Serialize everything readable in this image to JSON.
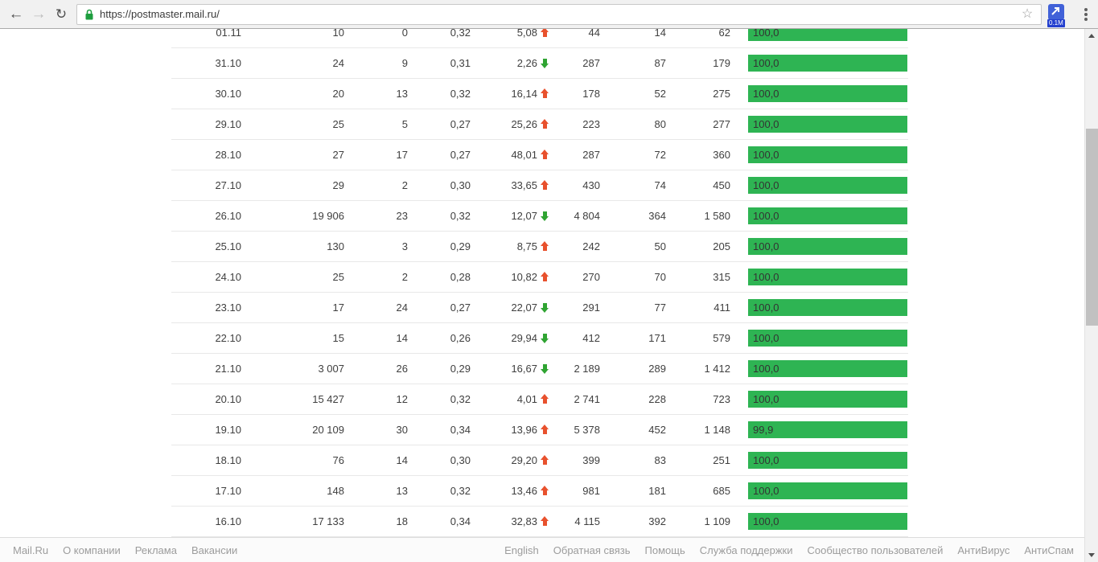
{
  "browser": {
    "url": "https://postmaster.mail.ru/",
    "extension_badge": "0.1M",
    "icons": {
      "back": "←",
      "forward": "→",
      "reload": "↻",
      "star": "☆"
    }
  },
  "table": {
    "rows": [
      {
        "date": "01.11",
        "v1": "10",
        "v2": "0",
        "v3": "0,32",
        "trend_value": "5,08",
        "trend": "up",
        "v4": "44",
        "v5": "14",
        "v6": "62",
        "bar_label": "100,0",
        "bar_percent": 100
      },
      {
        "date": "31.10",
        "v1": "24",
        "v2": "9",
        "v3": "0,31",
        "trend_value": "2,26",
        "trend": "down",
        "v4": "287",
        "v5": "87",
        "v6": "179",
        "bar_label": "100,0",
        "bar_percent": 100
      },
      {
        "date": "30.10",
        "v1": "20",
        "v2": "13",
        "v3": "0,32",
        "trend_value": "16,14",
        "trend": "up",
        "v4": "178",
        "v5": "52",
        "v6": "275",
        "bar_label": "100,0",
        "bar_percent": 100
      },
      {
        "date": "29.10",
        "v1": "25",
        "v2": "5",
        "v3": "0,27",
        "trend_value": "25,26",
        "trend": "up",
        "v4": "223",
        "v5": "80",
        "v6": "277",
        "bar_label": "100,0",
        "bar_percent": 100
      },
      {
        "date": "28.10",
        "v1": "27",
        "v2": "17",
        "v3": "0,27",
        "trend_value": "48,01",
        "trend": "up",
        "v4": "287",
        "v5": "72",
        "v6": "360",
        "bar_label": "100,0",
        "bar_percent": 100
      },
      {
        "date": "27.10",
        "v1": "29",
        "v2": "2",
        "v3": "0,30",
        "trend_value": "33,65",
        "trend": "up",
        "v4": "430",
        "v5": "74",
        "v6": "450",
        "bar_label": "100,0",
        "bar_percent": 100
      },
      {
        "date": "26.10",
        "v1": "19 906",
        "v2": "23",
        "v3": "0,32",
        "trend_value": "12,07",
        "trend": "down",
        "v4": "4 804",
        "v5": "364",
        "v6": "1 580",
        "bar_label": "100,0",
        "bar_percent": 100
      },
      {
        "date": "25.10",
        "v1": "130",
        "v2": "3",
        "v3": "0,29",
        "trend_value": "8,75",
        "trend": "up",
        "v4": "242",
        "v5": "50",
        "v6": "205",
        "bar_label": "100,0",
        "bar_percent": 100
      },
      {
        "date": "24.10",
        "v1": "25",
        "v2": "2",
        "v3": "0,28",
        "trend_value": "10,82",
        "trend": "up",
        "v4": "270",
        "v5": "70",
        "v6": "315",
        "bar_label": "100,0",
        "bar_percent": 100
      },
      {
        "date": "23.10",
        "v1": "17",
        "v2": "24",
        "v3": "0,27",
        "trend_value": "22,07",
        "trend": "down",
        "v4": "291",
        "v5": "77",
        "v6": "411",
        "bar_label": "100,0",
        "bar_percent": 100
      },
      {
        "date": "22.10",
        "v1": "15",
        "v2": "14",
        "v3": "0,26",
        "trend_value": "29,94",
        "trend": "down",
        "v4": "412",
        "v5": "171",
        "v6": "579",
        "bar_label": "100,0",
        "bar_percent": 100
      },
      {
        "date": "21.10",
        "v1": "3 007",
        "v2": "26",
        "v3": "0,29",
        "trend_value": "16,67",
        "trend": "down",
        "v4": "2 189",
        "v5": "289",
        "v6": "1 412",
        "bar_label": "100,0",
        "bar_percent": 100
      },
      {
        "date": "20.10",
        "v1": "15 427",
        "v2": "12",
        "v3": "0,32",
        "trend_value": "4,01",
        "trend": "up",
        "v4": "2 741",
        "v5": "228",
        "v6": "723",
        "bar_label": "100,0",
        "bar_percent": 100
      },
      {
        "date": "19.10",
        "v1": "20 109",
        "v2": "30",
        "v3": "0,34",
        "trend_value": "13,96",
        "trend": "up",
        "v4": "5 378",
        "v5": "452",
        "v6": "1 148",
        "bar_label": "99,9",
        "bar_percent": 99.9
      },
      {
        "date": "18.10",
        "v1": "76",
        "v2": "14",
        "v3": "0,30",
        "trend_value": "29,20",
        "trend": "up",
        "v4": "399",
        "v5": "83",
        "v6": "251",
        "bar_label": "100,0",
        "bar_percent": 100
      },
      {
        "date": "17.10",
        "v1": "148",
        "v2": "13",
        "v3": "0,32",
        "trend_value": "13,46",
        "trend": "up",
        "v4": "981",
        "v5": "181",
        "v6": "685",
        "bar_label": "100,0",
        "bar_percent": 100
      },
      {
        "date": "16.10",
        "v1": "17 133",
        "v2": "18",
        "v3": "0,34",
        "trend_value": "32,83",
        "trend": "up",
        "v4": "4 115",
        "v5": "392",
        "v6": "1 109",
        "bar_label": "100,0",
        "bar_percent": 100
      }
    ]
  },
  "footer": {
    "left": [
      "Mail.Ru",
      "О компании",
      "Реклама",
      "Вакансии"
    ],
    "right": [
      "English",
      "Обратная связь",
      "Помощь",
      "Служба поддержки",
      "Сообщество пользователей",
      "АнтиВирус",
      "АнтиСпам"
    ]
  },
  "colors": {
    "bar_green": "#2eb453",
    "trend_up": "#e8512d",
    "trend_down": "#2fa432",
    "ext_blue": "#4161d8"
  }
}
